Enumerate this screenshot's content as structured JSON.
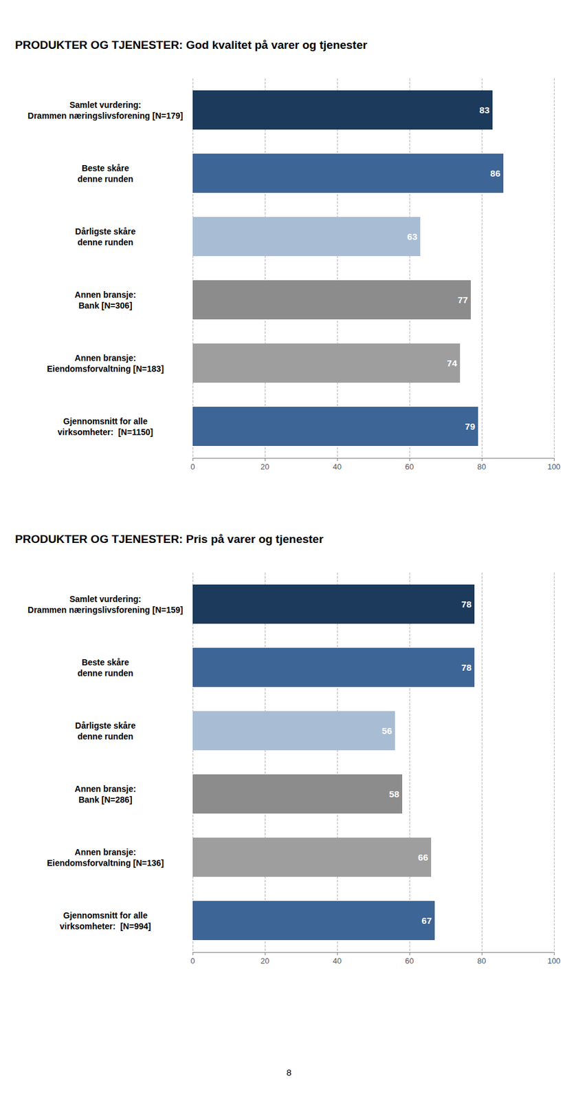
{
  "chart_data": [
    {
      "type": "bar",
      "title": "PRODUKTER OG TJENESTER: God kvalitet på varer og tjenester",
      "categories": [
        "Samlet vurdering:\nDrammen næringslivsforening [N=179]",
        "Beste skåre\ndenne runden",
        "Dårligste skåre\ndenne runden",
        "Annen bransje:\nBank [N=306]",
        "Annen bransje:\nEiendomsforvaltning [N=183]",
        "Gjennomsnitt for alle\nvirksomheter:  [N=1150]"
      ],
      "values": [
        83,
        86,
        63,
        77,
        74,
        79
      ],
      "colors": [
        "#1b3a5c",
        "#3d6596",
        "#a8bdd4",
        "#8c8c8c",
        "#9e9e9e",
        "#3d6596"
      ],
      "orientation": "horizontal",
      "xlim": [
        0,
        100
      ],
      "xticks": [
        0,
        20,
        40,
        60,
        80,
        100
      ],
      "grid": true,
      "data_labels": true
    },
    {
      "type": "bar",
      "title": "PRODUKTER OG TJENESTER: Pris på varer og tjenester",
      "categories": [
        "Samlet vurdering:\nDrammen næringslivsforening [N=159]",
        "Beste skåre\ndenne runden",
        "Dårligste skåre\ndenne runden",
        "Annen bransje:\nBank [N=286]",
        "Annen bransje:\nEiendomsforvaltning [N=136]",
        "Gjennomsnitt for alle\nvirksomheter:  [N=994]"
      ],
      "values": [
        78,
        78,
        56,
        58,
        66,
        67
      ],
      "colors": [
        "#1b3a5c",
        "#3d6596",
        "#a8bdd4",
        "#8c8c8c",
        "#9e9e9e",
        "#3d6596"
      ],
      "orientation": "horizontal",
      "xlim": [
        0,
        100
      ],
      "xticks": [
        0,
        20,
        40,
        60,
        80,
        100
      ],
      "grid": true,
      "data_labels": true,
      "annotations": [
        "8"
      ]
    }
  ]
}
